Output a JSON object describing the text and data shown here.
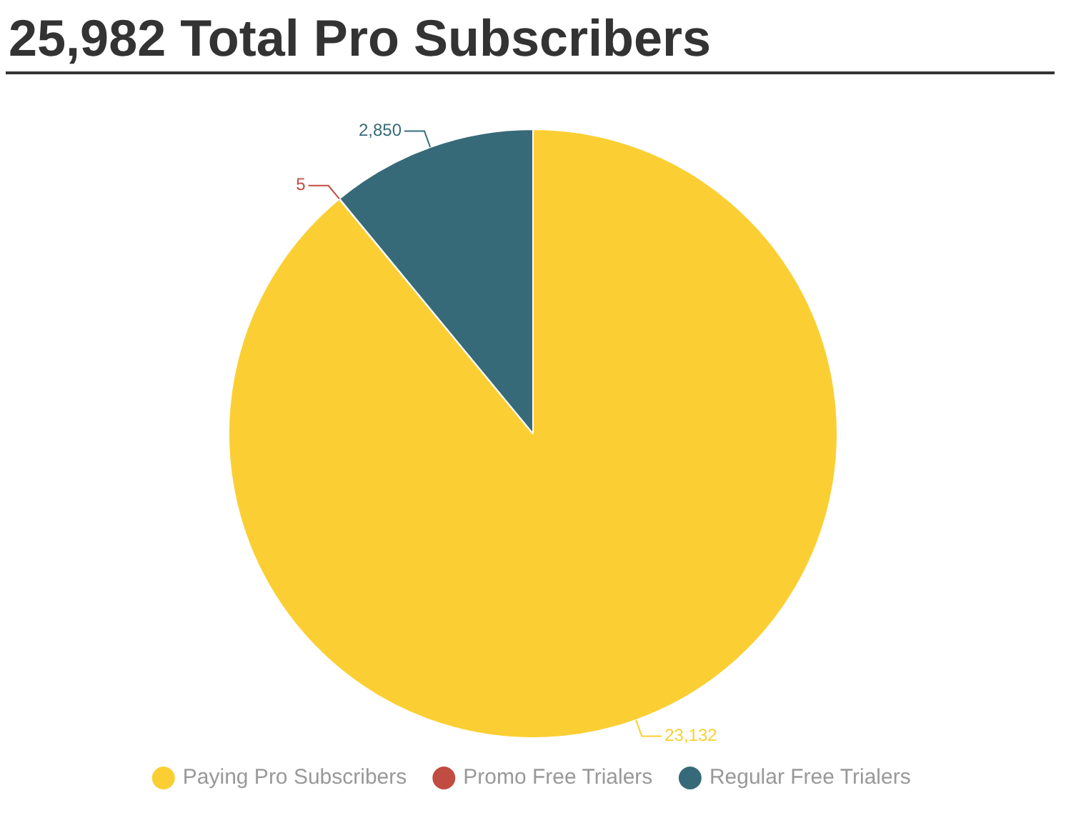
{
  "chart_data": {
    "type": "pie",
    "title": "25,982 Total Pro Subscribers",
    "categories": [
      "Paying Pro Subscribers",
      "Promo Free Trialers",
      "Regular Free Trialers"
    ],
    "values": [
      23132,
      5,
      2850
    ],
    "colors": [
      "#fbcf33",
      "#c14c41",
      "#376a78"
    ],
    "value_labels": [
      "23,132",
      "5",
      "2,850"
    ],
    "legend": "bottom"
  }
}
